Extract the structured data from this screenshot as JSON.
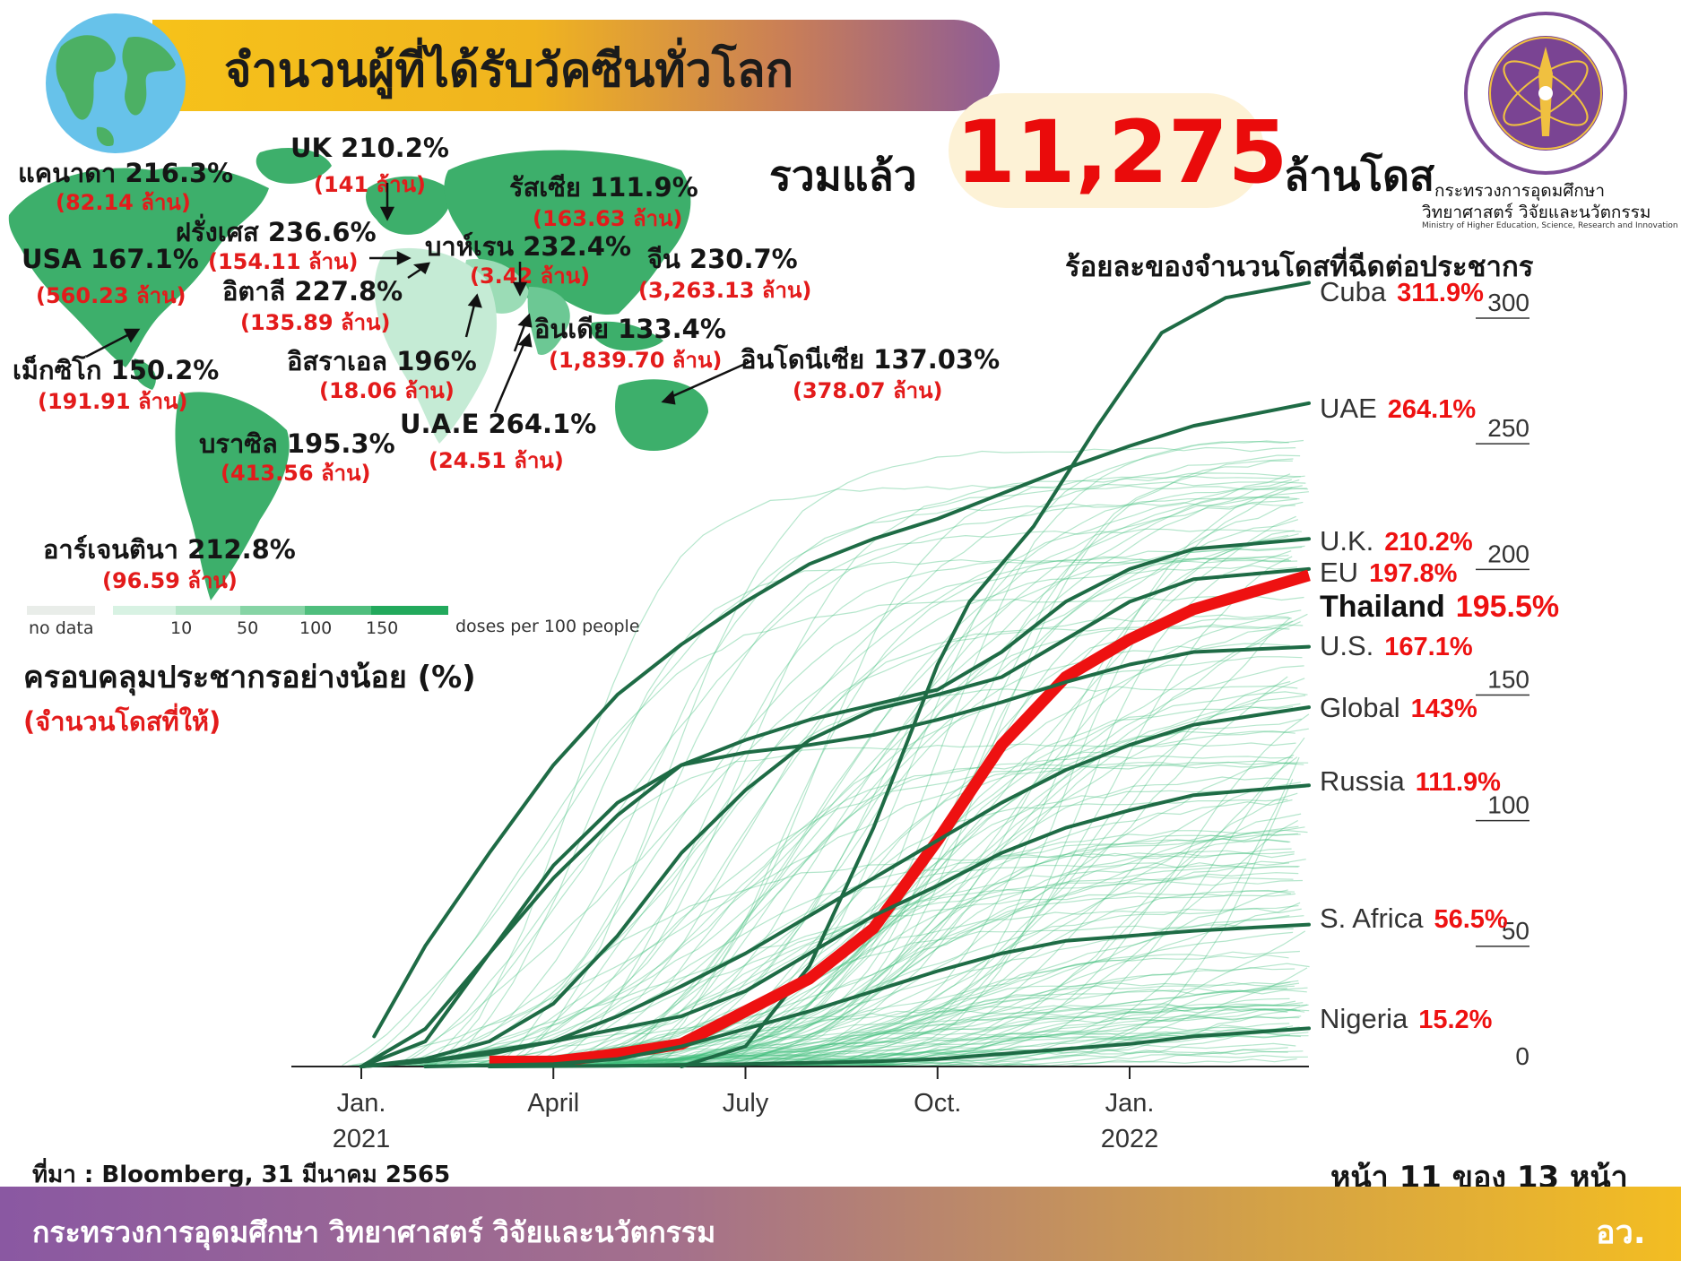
{
  "header": {
    "title": "จำนวนผู้ที่ได้รับวัคซีนทั่วโลก",
    "total_prefix": "รวมแล้ว",
    "total_value": "11,275",
    "total_suffix": "ล้านโดส",
    "ministry_th_line1": "กระทรวงการอุดมศึกษา",
    "ministry_th_line2": "วิทยาศาสตร์ วิจัยและนวัตกรรม",
    "ministry_en": "Ministry of Higher Education, Science, Research and Innovation"
  },
  "map": {
    "countries": [
      {
        "name": "แคนาดา",
        "pct": "216.3%",
        "doses": "(82.14 ล้าน)"
      },
      {
        "name": "UK",
        "pct": "210.2%",
        "doses": "(141 ล้าน)"
      },
      {
        "name": "รัสเซีย",
        "pct": "111.9%",
        "doses": "(163.63 ล้าน)"
      },
      {
        "name": "ฝรั่งเศส",
        "pct": "236.6%",
        "doses": "(154.11 ล้าน)"
      },
      {
        "name": "บาห์เรน",
        "pct": "232.4%",
        "doses": "(3.42 ล้าน)"
      },
      {
        "name": "จีน",
        "pct": "230.7%",
        "doses": "(3,263.13 ล้าน)"
      },
      {
        "name": "USA",
        "pct": "167.1%",
        "doses": "(560.23 ล้าน)"
      },
      {
        "name": "อิตาลี",
        "pct": "227.8%",
        "doses": "(135.89 ล้าน)"
      },
      {
        "name": "อินเดีย",
        "pct": "133.4%",
        "doses": "(1,839.70 ล้าน)"
      },
      {
        "name": "อิสราเอล",
        "pct": "196%",
        "doses": "(18.06 ล้าน)"
      },
      {
        "name": "อินโดนีเซีย",
        "pct": "137.03%",
        "doses": "(378.07 ล้าน)"
      },
      {
        "name": "เม็กซิโก",
        "pct": "150.2%",
        "doses": "(191.91 ล้าน)"
      },
      {
        "name": "บราซิล",
        "pct": "195.3%",
        "doses": "(413.56 ล้าน)"
      },
      {
        "name": "U.A.E",
        "pct": "264.1%",
        "doses": "(24.51 ล้าน)"
      },
      {
        "name": "อาร์เจนตินา",
        "pct": "212.8%",
        "doses": "(96.59 ล้าน)"
      }
    ],
    "legend": {
      "no_data": "no data",
      "ticks": [
        "10",
        "50",
        "100",
        "150"
      ],
      "unit": "doses per 100 people",
      "colors": [
        "#e9ede9",
        "#d8f2e3",
        "#b6e6c9",
        "#86d4a5",
        "#4fbe7d",
        "#22a95c"
      ]
    },
    "colors": {
      "land": "#3daf6b",
      "light": "#bfe8cf",
      "water": "#ffffff"
    }
  },
  "coverage": {
    "label": "ครอบคลุมประชากรอย่างน้อย (%)",
    "sub": "(จำนวนโดสที่ให้)"
  },
  "chart_data": {
    "type": "line",
    "title": "ร้อยละของจำนวนโดสที่ฉีดต่อประชากร",
    "x_ticks": [
      {
        "label": "Jan.",
        "sub": "2021",
        "month": 0
      },
      {
        "label": "April",
        "sub": "",
        "month": 3
      },
      {
        "label": "July",
        "sub": "",
        "month": 6
      },
      {
        "label": "Oct.",
        "sub": "",
        "month": 9
      },
      {
        "label": "Jan.",
        "sub": "2022",
        "month": 12
      }
    ],
    "y_ticks": [
      0,
      50,
      100,
      150,
      200,
      250,
      300
    ],
    "ylim": [
      0,
      320
    ],
    "xlim_months": [
      -0.6,
      14.8
    ],
    "series": [
      {
        "name": "Cuba",
        "label": "311.9%",
        "highlight": "dark",
        "points": [
          [
            5,
            0
          ],
          [
            6,
            8
          ],
          [
            7,
            40
          ],
          [
            8,
            95
          ],
          [
            9,
            160
          ],
          [
            9.5,
            185
          ],
          [
            10.5,
            215
          ],
          [
            11.5,
            255
          ],
          [
            12.5,
            292
          ],
          [
            13.5,
            306
          ],
          [
            14.8,
            312
          ]
        ]
      },
      {
        "name": "UAE",
        "label": "264.1%",
        "highlight": "dark",
        "points": [
          [
            0.2,
            12
          ],
          [
            1,
            48
          ],
          [
            2,
            85
          ],
          [
            3,
            120
          ],
          [
            4,
            148
          ],
          [
            5,
            168
          ],
          [
            6,
            185
          ],
          [
            7,
            200
          ],
          [
            8,
            210
          ],
          [
            9,
            218
          ],
          [
            10,
            228
          ],
          [
            11,
            238
          ],
          [
            12,
            247
          ],
          [
            13,
            255
          ],
          [
            14.8,
            264
          ]
        ]
      },
      {
        "name": "U.K.",
        "label": "210.2%",
        "highlight": "dark",
        "points": [
          [
            0,
            0
          ],
          [
            1,
            10
          ],
          [
            2,
            45
          ],
          [
            3,
            75
          ],
          [
            4,
            100
          ],
          [
            5,
            120
          ],
          [
            6,
            130
          ],
          [
            7,
            138
          ],
          [
            8,
            144
          ],
          [
            9,
            150
          ],
          [
            10,
            165
          ],
          [
            11,
            185
          ],
          [
            12,
            198
          ],
          [
            13,
            206
          ],
          [
            14.8,
            210
          ]
        ]
      },
      {
        "name": "EU",
        "label": "197.8%",
        "highlight": "dark",
        "points": [
          [
            0,
            0
          ],
          [
            1,
            3
          ],
          [
            2,
            10
          ],
          [
            3,
            25
          ],
          [
            4,
            52
          ],
          [
            5,
            85
          ],
          [
            6,
            110
          ],
          [
            7,
            130
          ],
          [
            8,
            142
          ],
          [
            9,
            148
          ],
          [
            10,
            155
          ],
          [
            11,
            170
          ],
          [
            12,
            185
          ],
          [
            13,
            194
          ],
          [
            14.8,
            198
          ]
        ]
      },
      {
        "name": "Thailand",
        "label": "195.5%",
        "highlight": "red",
        "points": [
          [
            2,
            2
          ],
          [
            3,
            2
          ],
          [
            4,
            5
          ],
          [
            5,
            9
          ],
          [
            6,
            22
          ],
          [
            7,
            35
          ],
          [
            8,
            55
          ],
          [
            9,
            90
          ],
          [
            10,
            128
          ],
          [
            11,
            155
          ],
          [
            12,
            170
          ],
          [
            13,
            182
          ],
          [
            14.8,
            195.5
          ]
        ]
      },
      {
        "name": "U.S.",
        "label": "167.1%",
        "highlight": "dark",
        "points": [
          [
            0,
            0
          ],
          [
            1,
            15
          ],
          [
            2,
            45
          ],
          [
            3,
            80
          ],
          [
            4,
            105
          ],
          [
            5,
            120
          ],
          [
            6,
            125
          ],
          [
            7,
            128
          ],
          [
            8,
            132
          ],
          [
            9,
            138
          ],
          [
            10,
            145
          ],
          [
            11,
            153
          ],
          [
            12,
            160
          ],
          [
            13,
            165
          ],
          [
            14.8,
            167.1
          ]
        ]
      },
      {
        "name": "Global",
        "label": "143%",
        "highlight": "dark",
        "points": [
          [
            0,
            0
          ],
          [
            1,
            2
          ],
          [
            2,
            6
          ],
          [
            3,
            10
          ],
          [
            4,
            20
          ],
          [
            5,
            32
          ],
          [
            6,
            45
          ],
          [
            7,
            60
          ],
          [
            8,
            75
          ],
          [
            9,
            90
          ],
          [
            10,
            105
          ],
          [
            11,
            118
          ],
          [
            12,
            128
          ],
          [
            13,
            136
          ],
          [
            14.8,
            143
          ]
        ]
      },
      {
        "name": "Russia",
        "label": "111.9%",
        "highlight": "dark",
        "points": [
          [
            0,
            0
          ],
          [
            1,
            2
          ],
          [
            2,
            5
          ],
          [
            3,
            10
          ],
          [
            4,
            15
          ],
          [
            5,
            20
          ],
          [
            6,
            30
          ],
          [
            7,
            45
          ],
          [
            8,
            60
          ],
          [
            9,
            72
          ],
          [
            10,
            85
          ],
          [
            11,
            95
          ],
          [
            12,
            102
          ],
          [
            13,
            108
          ],
          [
            14.8,
            111.9
          ]
        ]
      },
      {
        "name": "S. Africa",
        "label": "56.5%",
        "highlight": "dark",
        "points": [
          [
            1,
            0
          ],
          [
            2,
            0.5
          ],
          [
            3,
            1
          ],
          [
            4,
            3
          ],
          [
            5,
            8
          ],
          [
            6,
            15
          ],
          [
            7,
            22
          ],
          [
            8,
            30
          ],
          [
            9,
            38
          ],
          [
            10,
            45
          ],
          [
            11,
            50
          ],
          [
            12,
            52
          ],
          [
            13,
            54
          ],
          [
            14.8,
            56.5
          ]
        ]
      },
      {
        "name": "Nigeria",
        "label": "15.2%",
        "highlight": "dark",
        "points": [
          [
            2,
            0
          ],
          [
            4,
            0.3
          ],
          [
            6,
            1
          ],
          [
            8,
            2
          ],
          [
            9,
            3
          ],
          [
            10,
            5
          ],
          [
            11,
            7
          ],
          [
            12,
            9
          ],
          [
            13,
            12
          ],
          [
            14.8,
            15.2
          ]
        ]
      }
    ]
  },
  "footer": {
    "source": "ที่มา : Bloomberg, 31 มีนาคม 2565",
    "page": "หน้า 11 ของ 13 หน้า",
    "ministry": "กระทรวงการอุดมศึกษา วิทยาศาสตร์ วิจัยและนวัตกรรม",
    "abbr": "อว."
  },
  "colors": {
    "accent_red": "#ee1111",
    "dark_line": "#1e6b45",
    "bg_line": "#3dbd7a"
  }
}
